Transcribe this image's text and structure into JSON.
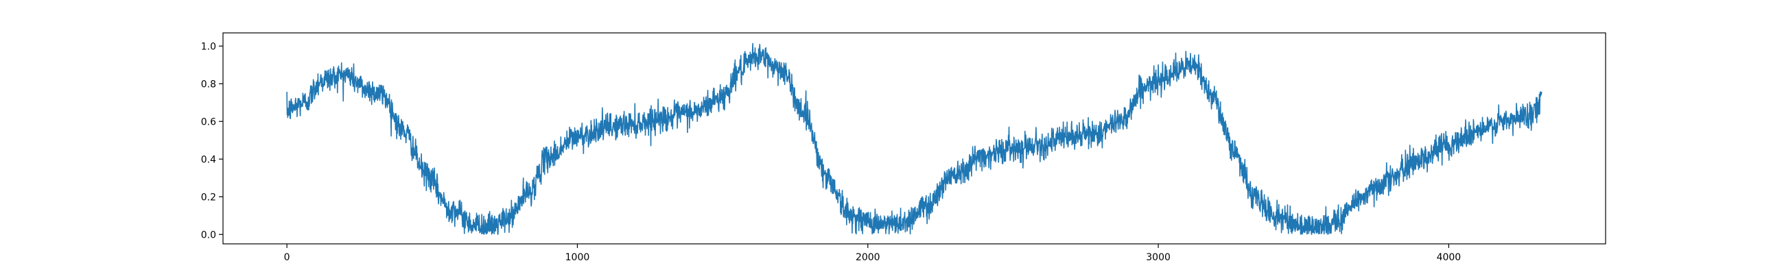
{
  "chart_data": {
    "type": "line",
    "title": "",
    "xlabel": "",
    "ylabel": "",
    "xlim": [
      -220,
      4540
    ],
    "ylim": [
      -0.05,
      1.07
    ],
    "x_ticks": [
      0,
      1000,
      2000,
      3000,
      4000
    ],
    "x_tick_labels": [
      "0",
      "1000",
      "2000",
      "3000",
      "4000"
    ],
    "y_ticks": [
      0.0,
      0.2,
      0.4,
      0.6,
      0.8,
      1.0
    ],
    "y_tick_labels": [
      "0.0",
      "0.2",
      "0.4",
      "0.6",
      "0.8",
      "1.0"
    ],
    "grid": false,
    "line_color": "#1f77b4",
    "x_start": 0,
    "x_end": 4320,
    "anchors": [
      [
        0,
        0.66
      ],
      [
        60,
        0.7
      ],
      [
        120,
        0.82
      ],
      [
        200,
        0.85
      ],
      [
        280,
        0.77
      ],
      [
        330,
        0.74
      ],
      [
        400,
        0.55
      ],
      [
        480,
        0.32
      ],
      [
        560,
        0.14
      ],
      [
        650,
        0.05
      ],
      [
        700,
        0.04
      ],
      [
        760,
        0.08
      ],
      [
        830,
        0.22
      ],
      [
        900,
        0.41
      ],
      [
        1000,
        0.52
      ],
      [
        1100,
        0.57
      ],
      [
        1200,
        0.59
      ],
      [
        1300,
        0.62
      ],
      [
        1400,
        0.65
      ],
      [
        1500,
        0.73
      ],
      [
        1560,
        0.87
      ],
      [
        1620,
        0.95
      ],
      [
        1700,
        0.88
      ],
      [
        1780,
        0.65
      ],
      [
        1860,
        0.3
      ],
      [
        1940,
        0.1
      ],
      [
        2000,
        0.07
      ],
      [
        2060,
        0.05
      ],
      [
        2130,
        0.07
      ],
      [
        2200,
        0.15
      ],
      [
        2300,
        0.33
      ],
      [
        2400,
        0.42
      ],
      [
        2500,
        0.46
      ],
      [
        2600,
        0.48
      ],
      [
        2700,
        0.52
      ],
      [
        2800,
        0.54
      ],
      [
        2880,
        0.62
      ],
      [
        2950,
        0.78
      ],
      [
        3050,
        0.86
      ],
      [
        3120,
        0.9
      ],
      [
        3180,
        0.76
      ],
      [
        3260,
        0.45
      ],
      [
        3330,
        0.2
      ],
      [
        3400,
        0.1
      ],
      [
        3480,
        0.05
      ],
      [
        3550,
        0.03
      ],
      [
        3620,
        0.08
      ],
      [
        3700,
        0.2
      ],
      [
        3800,
        0.3
      ],
      [
        3900,
        0.4
      ],
      [
        4000,
        0.48
      ],
      [
        4100,
        0.55
      ],
      [
        4200,
        0.6
      ],
      [
        4300,
        0.65
      ],
      [
        4320,
        0.74
      ]
    ],
    "noise_amplitude": 0.035
  }
}
